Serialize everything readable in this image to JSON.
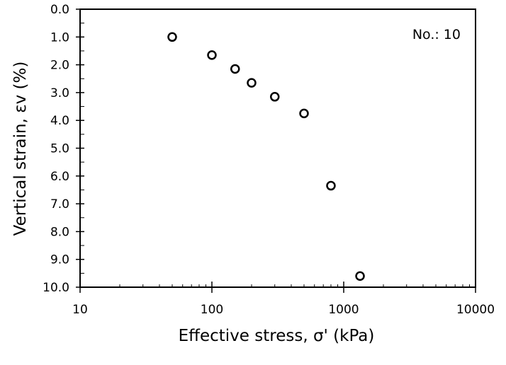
{
  "chart_data": {
    "type": "scatter",
    "xlabel": "Effective stress, σ' (kPa)",
    "ylabel": "Vertical strain, εv (%)",
    "annotation": "No.: 10",
    "x_scale": "log",
    "xlim": [
      10,
      10000
    ],
    "ylim": [
      0,
      10
    ],
    "y_inverted": true,
    "grid": false,
    "x_ticks": [
      "10",
      "100",
      "1000",
      "10000"
    ],
    "y_ticks": [
      "0.0",
      "1.0",
      "2.0",
      "3.0",
      "4.0",
      "5.0",
      "6.0",
      "7.0",
      "8.0",
      "9.0",
      "10.0"
    ],
    "marker": "open-circle",
    "points": [
      {
        "x": 50,
        "y": 1.0
      },
      {
        "x": 100,
        "y": 1.65
      },
      {
        "x": 150,
        "y": 2.15
      },
      {
        "x": 200,
        "y": 2.65
      },
      {
        "x": 300,
        "y": 3.15
      },
      {
        "x": 500,
        "y": 3.75
      },
      {
        "x": 800,
        "y": 6.35
      },
      {
        "x": 1330,
        "y": 9.6
      }
    ]
  }
}
